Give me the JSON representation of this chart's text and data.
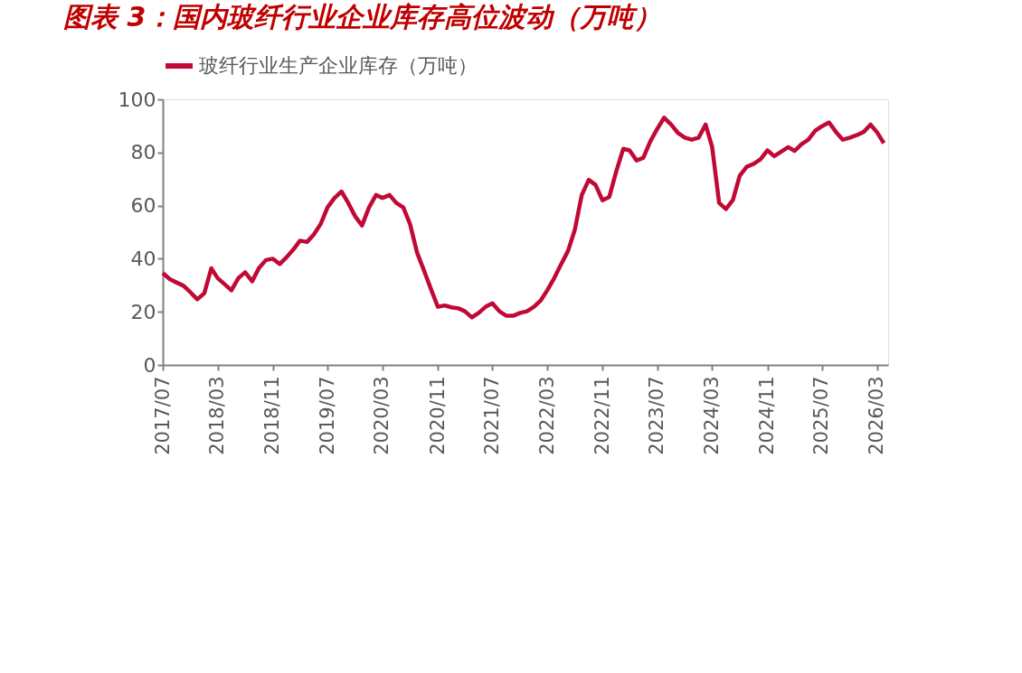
{
  "chart_data": {
    "type": "line",
    "title": "图表 3：国内玻纤行业企业库存高位波动（万吨）",
    "x": [
      "2017-07",
      "2017-08",
      "2017-09",
      "2017-10",
      "2017-11",
      "2017-12",
      "2018-01",
      "2018-02",
      "2018-03",
      "2018-04",
      "2018-05",
      "2018-06",
      "2018-07",
      "2018-08",
      "2018-09",
      "2018-10",
      "2018-11",
      "2018-12",
      "2019-01",
      "2019-02",
      "2019-03",
      "2019-04",
      "2019-05",
      "2019-06",
      "2019-07",
      "2019-08",
      "2019-09",
      "2019-10",
      "2019-11",
      "2019-12",
      "2020-01",
      "2020-02",
      "2020-03",
      "2020-04",
      "2020-05",
      "2020-06",
      "2020-07",
      "2020-08",
      "2020-09",
      "2020-10",
      "2020-11",
      "2020-12",
      "2021-01",
      "2021-02",
      "2021-03",
      "2021-04",
      "2021-05",
      "2021-06",
      "2021-07",
      "2021-08",
      "2021-09",
      "2021-10",
      "2021-11",
      "2021-12",
      "2022-01",
      "2022-02",
      "2022-03",
      "2022-04",
      "2022-05",
      "2022-06",
      "2022-07",
      "2022-08",
      "2022-09",
      "2022-10",
      "2022-11",
      "2022-12",
      "2023-01",
      "2023-02",
      "2023-03",
      "2023-04",
      "2023-05",
      "2023-06",
      "2023-07",
      "2023-08",
      "2023-09",
      "2023-10",
      "2023-11",
      "2023-12",
      "2024-01",
      "2024-02",
      "2024-03",
      "2024-04",
      "2024-05",
      "2024-06",
      "2024-07",
      "2024-08",
      "2024-09",
      "2024-10",
      "2024-11",
      "2024-12",
      "2025-01",
      "2025-02",
      "2025-03",
      "2025-04",
      "2025-05",
      "2025-06",
      "2025-07",
      "2025-08",
      "2025-09",
      "2025-10",
      "2025-11",
      "2025-12",
      "2026-01",
      "2026-02",
      "2026-03",
      "2026-04"
    ],
    "series": [
      {
        "name": "玻纤行业生产企业库存（万吨）",
        "color": "#c00a35",
        "values": [
          34.6,
          32.3,
          31.0,
          29.8,
          27.3,
          24.7,
          27.0,
          36.4,
          32.7,
          30.4,
          28.1,
          32.7,
          34.9,
          31.5,
          36.6,
          39.5,
          40.0,
          38.0,
          40.6,
          43.6,
          46.8,
          46.3,
          49.1,
          53.1,
          59.3,
          62.9,
          65.3,
          61.0,
          55.9,
          52.5,
          59.3,
          64.0,
          62.9,
          64.0,
          61.0,
          59.3,
          53.0,
          42.3,
          35.5,
          28.7,
          21.9,
          22.4,
          21.7,
          21.3,
          20.2,
          17.9,
          19.6,
          21.9,
          23.2,
          20.2,
          18.5,
          18.5,
          19.6,
          20.2,
          21.9,
          24.4,
          28.1,
          32.7,
          37.8,
          42.9,
          50.8,
          64.0,
          69.7,
          67.8,
          62.0,
          63.3,
          72.9,
          81.4,
          80.8,
          77.0,
          78.0,
          84.2,
          88.8,
          93.1,
          90.5,
          87.4,
          85.6,
          84.8,
          85.6,
          90.5,
          82.0,
          61.0,
          58.7,
          62.1,
          71.2,
          74.6,
          75.7,
          77.4,
          80.8,
          78.6,
          80.3,
          82.0,
          80.6,
          83.1,
          84.8,
          88.2,
          89.9,
          91.3,
          87.7,
          84.8,
          85.6,
          86.5,
          87.7,
          90.5,
          87.7,
          83.5
        ]
      }
    ],
    "xlim": [
      "2017-07",
      "2026-04-20"
    ],
    "xticks": [
      {
        "value": "2017-07",
        "label": "2017/07"
      },
      {
        "value": "2018-03",
        "label": "2018/03"
      },
      {
        "value": "2018-11",
        "label": "2018/11"
      },
      {
        "value": "2019-07",
        "label": "2019/07"
      },
      {
        "value": "2020-03",
        "label": "2020/03"
      },
      {
        "value": "2020-11",
        "label": "2020/11"
      },
      {
        "value": "2021-07",
        "label": "2021/07"
      },
      {
        "value": "2022-03",
        "label": "2022/03"
      },
      {
        "value": "2022-11",
        "label": "2022/11"
      },
      {
        "value": "2023-07",
        "label": "2023/07"
      },
      {
        "value": "2024-03",
        "label": "2024/03"
      },
      {
        "value": "2024-11",
        "label": "2024/11"
      },
      {
        "value": "2025-07",
        "label": "2025/07"
      },
      {
        "value": "2026-03",
        "label": "2026/03"
      }
    ],
    "ylim": [
      0,
      100
    ],
    "yticks": [
      0,
      20,
      40,
      60,
      80,
      100
    ],
    "legend": "top",
    "grid": false,
    "line_style": "solid"
  }
}
